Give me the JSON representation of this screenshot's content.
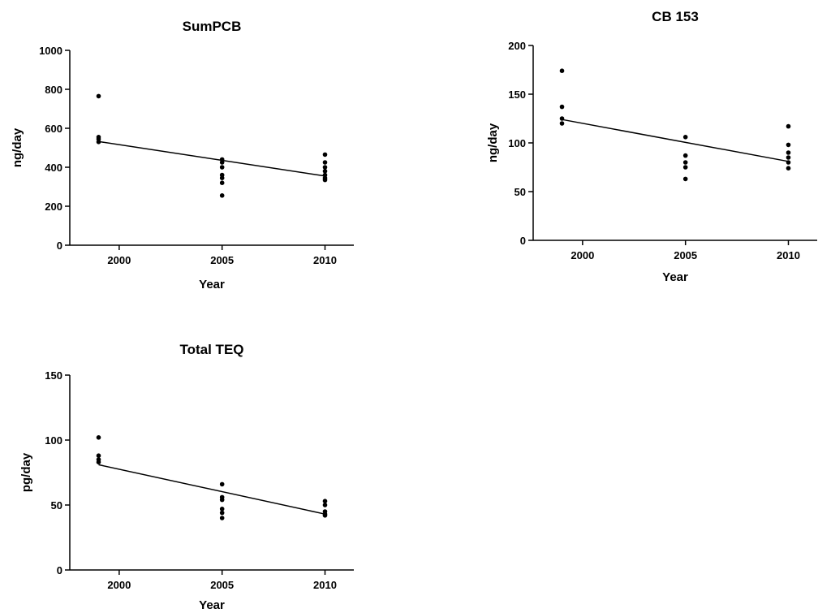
{
  "chart_data": [
    {
      "type": "scatter",
      "title": "SumPCB",
      "xlabel": "Year",
      "ylabel": "ng/day",
      "xlim": [
        1997.6,
        2011.4
      ],
      "ylim": [
        0,
        1000
      ],
      "xticks": [
        2000,
        2005,
        2010
      ],
      "yticks": [
        0,
        200,
        400,
        600,
        800,
        1000
      ],
      "grid": false,
      "points": [
        {
          "x": 1999,
          "y": 765
        },
        {
          "x": 1999,
          "y": 555
        },
        {
          "x": 1999,
          "y": 545
        },
        {
          "x": 1999,
          "y": 530
        },
        {
          "x": 2005,
          "y": 440
        },
        {
          "x": 2005,
          "y": 425
        },
        {
          "x": 2005,
          "y": 400
        },
        {
          "x": 2005,
          "y": 360
        },
        {
          "x": 2005,
          "y": 345
        },
        {
          "x": 2005,
          "y": 320
        },
        {
          "x": 2005,
          "y": 255
        },
        {
          "x": 2010,
          "y": 465
        },
        {
          "x": 2010,
          "y": 425
        },
        {
          "x": 2010,
          "y": 400
        },
        {
          "x": 2010,
          "y": 380
        },
        {
          "x": 2010,
          "y": 360
        },
        {
          "x": 2010,
          "y": 345
        },
        {
          "x": 2010,
          "y": 335
        }
      ],
      "trend": [
        {
          "x": 1999,
          "y": 532
        },
        {
          "x": 2010,
          "y": 355
        }
      ]
    },
    {
      "type": "scatter",
      "title": "CB 153",
      "xlabel": "Year",
      "ylabel": "ng/day",
      "xlim": [
        1997.6,
        2011.4
      ],
      "ylim": [
        0,
        200
      ],
      "xticks": [
        2000,
        2005,
        2010
      ],
      "yticks": [
        0,
        50,
        100,
        150,
        200
      ],
      "grid": false,
      "points": [
        {
          "x": 1999,
          "y": 174
        },
        {
          "x": 1999,
          "y": 137
        },
        {
          "x": 1999,
          "y": 125
        },
        {
          "x": 1999,
          "y": 120
        },
        {
          "x": 2005,
          "y": 106
        },
        {
          "x": 2005,
          "y": 87
        },
        {
          "x": 2005,
          "y": 80
        },
        {
          "x": 2005,
          "y": 75
        },
        {
          "x": 2005,
          "y": 63
        },
        {
          "x": 2010,
          "y": 117
        },
        {
          "x": 2010,
          "y": 98
        },
        {
          "x": 2010,
          "y": 90
        },
        {
          "x": 2010,
          "y": 85
        },
        {
          "x": 2010,
          "y": 80
        },
        {
          "x": 2010,
          "y": 74
        }
      ],
      "trend": [
        {
          "x": 1999,
          "y": 124
        },
        {
          "x": 2010,
          "y": 81
        }
      ]
    },
    {
      "type": "scatter",
      "title": "Total TEQ",
      "xlabel": "Year",
      "ylabel": "pg/day",
      "xlim": [
        1997.6,
        2011.4
      ],
      "ylim": [
        0,
        150
      ],
      "xticks": [
        2000,
        2005,
        2010
      ],
      "yticks": [
        0,
        50,
        100,
        150
      ],
      "grid": false,
      "points": [
        {
          "x": 1999,
          "y": 102
        },
        {
          "x": 1999,
          "y": 88
        },
        {
          "x": 1999,
          "y": 85
        },
        {
          "x": 1999,
          "y": 83
        },
        {
          "x": 2005,
          "y": 66
        },
        {
          "x": 2005,
          "y": 56
        },
        {
          "x": 2005,
          "y": 54
        },
        {
          "x": 2005,
          "y": 47
        },
        {
          "x": 2005,
          "y": 44
        },
        {
          "x": 2005,
          "y": 40
        },
        {
          "x": 2010,
          "y": 53
        },
        {
          "x": 2010,
          "y": 50
        },
        {
          "x": 2010,
          "y": 45
        },
        {
          "x": 2010,
          "y": 43
        },
        {
          "x": 2010,
          "y": 42
        }
      ],
      "trend": [
        {
          "x": 1999,
          "y": 81
        },
        {
          "x": 2010,
          "y": 43
        }
      ]
    }
  ]
}
